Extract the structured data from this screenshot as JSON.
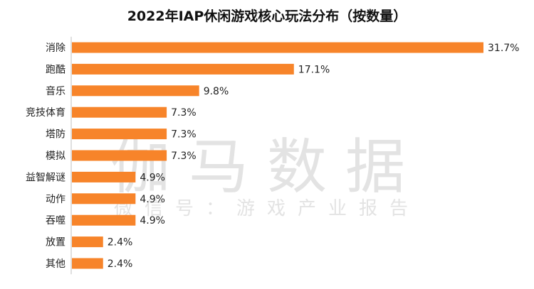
{
  "watermark": {
    "main": "伽马数据",
    "sub": "微信号：游戏产业报告"
  },
  "chart_data": {
    "type": "bar",
    "orientation": "horizontal",
    "title": "2022年IAP休闲游戏核心玩法分布（按数量）",
    "categories": [
      "消除",
      "跑酷",
      "音乐",
      "竞技体育",
      "塔防",
      "模拟",
      "益智解谜",
      "动作",
      "吞噬",
      "放置",
      "其他"
    ],
    "values": [
      31.7,
      17.1,
      9.8,
      7.3,
      7.3,
      7.3,
      4.9,
      4.9,
      4.9,
      2.4,
      2.4
    ],
    "value_labels": [
      "31.7%",
      "17.1%",
      "9.8%",
      "7.3%",
      "7.3%",
      "7.3%",
      "4.9%",
      "4.9%",
      "4.9%",
      "2.4%",
      "2.4%"
    ],
    "bar_color": "#F7842A",
    "xlim": [
      0,
      31.7
    ],
    "grid": false,
    "legend": "none"
  }
}
